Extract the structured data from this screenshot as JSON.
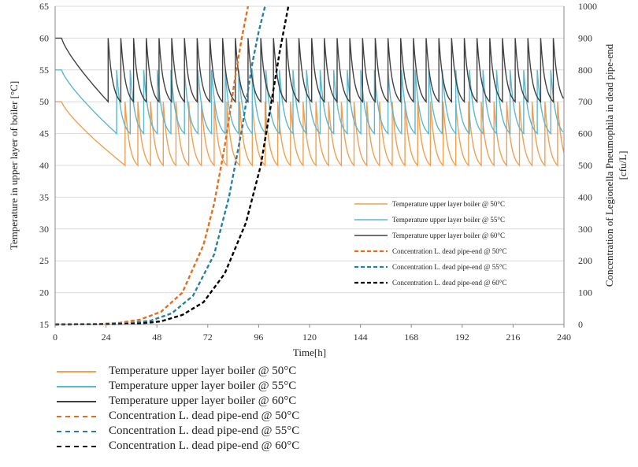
{
  "chart_data": {
    "type": "line",
    "xlabel": "Time[h]",
    "ylabel": "Temperature in upper layer of boiler [°C]",
    "y2label_line1": "Concentration of Legionella Pneumophila in dead pipe-end",
    "y2label_line2": "[cfu/L]",
    "xlim": [
      0,
      240
    ],
    "ylim": [
      15,
      65
    ],
    "y2lim": [
      0,
      1000
    ],
    "xticks": [
      0,
      24,
      48,
      72,
      96,
      120,
      144,
      168,
      192,
      216,
      240
    ],
    "yticks": [
      15,
      20,
      25,
      30,
      35,
      40,
      45,
      50,
      55,
      60,
      65
    ],
    "y2ticks": [
      0,
      100,
      200,
      300,
      400,
      500,
      600,
      700,
      800,
      900,
      1000
    ],
    "grid": "horizontal",
    "temperature_series": [
      {
        "name": "Temperature upper layer boiler @ 50°C",
        "color": "#f0a050",
        "setpoint": 50,
        "min": 40,
        "initial_drop_end_h": 33
      },
      {
        "name": "Temperature upper layer boiler @ 55°C",
        "color": "#5bb8d0",
        "setpoint": 55,
        "min": 45,
        "initial_drop_end_h": 29
      },
      {
        "name": "Temperature upper layer boiler @ 60°C",
        "color": "#404040",
        "setpoint": 60,
        "min": 50,
        "initial_drop_end_h": 25
      }
    ],
    "concentration_series": [
      {
        "name": "Concentration L. dead pipe-end @ 50°C",
        "color": "#e07020",
        "axis": "y2",
        "x": [
          0,
          20,
          30,
          40,
          50,
          60,
          70,
          75,
          80,
          85,
          88,
          91
        ],
        "y": [
          0,
          1,
          5,
          15,
          40,
          100,
          250,
          380,
          560,
          780,
          900,
          1000
        ]
      },
      {
        "name": "Concentration L. dead pipe-end @ 55°C",
        "color": "#2a7ea0",
        "axis": "y2",
        "x": [
          0,
          25,
          35,
          45,
          55,
          65,
          75,
          82,
          88,
          93,
          96,
          99
        ],
        "y": [
          0,
          1,
          4,
          12,
          35,
          90,
          220,
          400,
          610,
          820,
          920,
          1000
        ]
      },
      {
        "name": "Concentration L. dead pipe-end @ 60°C",
        "color": "#000000",
        "axis": "y2",
        "x": [
          0,
          30,
          40,
          50,
          60,
          70,
          80,
          90,
          97,
          102,
          106,
          110
        ],
        "y": [
          0,
          1,
          3,
          10,
          30,
          70,
          160,
          320,
          500,
          700,
          860,
          1000
        ]
      }
    ]
  },
  "legend": {
    "items": [
      {
        "label": "Temperature upper layer boiler @ 50°C",
        "color": "#f0a050",
        "dashed": false
      },
      {
        "label": "Temperature upper layer boiler @ 55°C",
        "color": "#5bb8d0",
        "dashed": false
      },
      {
        "label": "Temperature upper layer boiler @ 60°C",
        "color": "#404040",
        "dashed": false
      },
      {
        "label": "Concentration L. dead pipe-end @ 50°C",
        "color": "#e07020",
        "dashed": true
      },
      {
        "label": "Concentration L. dead pipe-end @ 55°C",
        "color": "#2a7ea0",
        "dashed": true
      },
      {
        "label": "Concentration L. dead pipe-end @ 60°C",
        "color": "#000000",
        "dashed": true
      }
    ]
  }
}
